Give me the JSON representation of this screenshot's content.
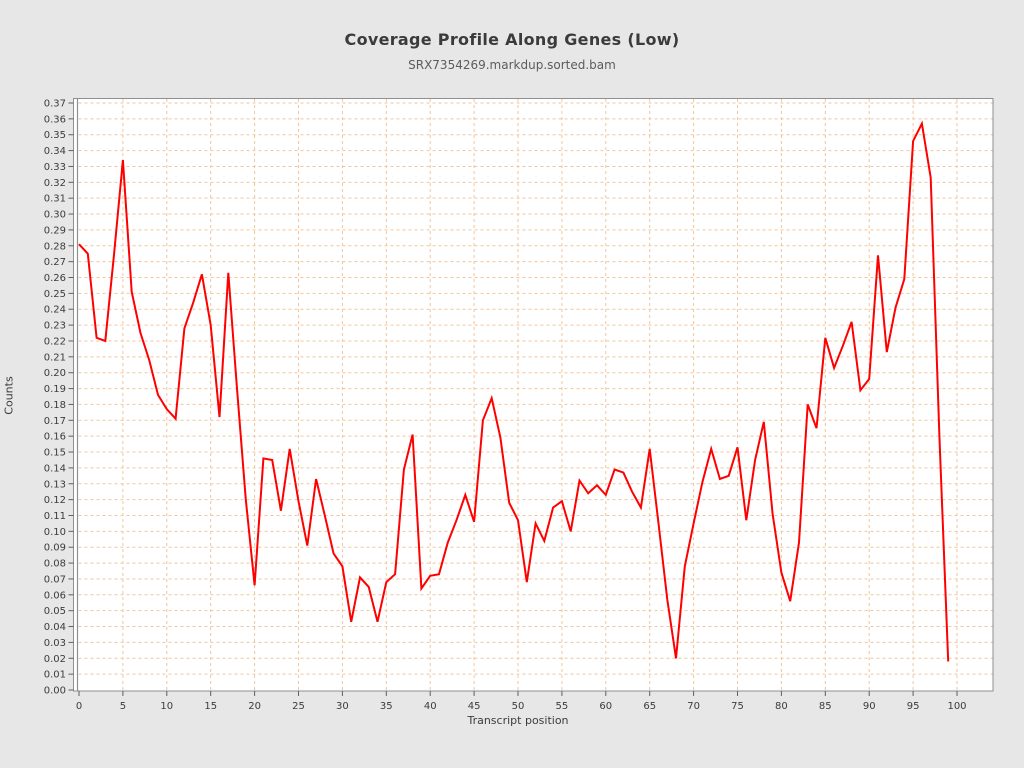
{
  "chart_data": {
    "type": "line",
    "title": "Coverage Profile Along Genes (Low)",
    "subtitle": "SRX7354269.markdup.sorted.bam",
    "xlabel": "Transcript position",
    "ylabel": "Counts",
    "xlim": [
      0,
      100
    ],
    "ylim": [
      0.0,
      0.37
    ],
    "x_ticks": [
      0,
      5,
      10,
      15,
      20,
      25,
      30,
      35,
      40,
      45,
      50,
      55,
      60,
      65,
      70,
      75,
      80,
      85,
      90,
      95,
      100
    ],
    "y_ticks": [
      "0.00",
      "0.01",
      "0.02",
      "0.03",
      "0.04",
      "0.05",
      "0.06",
      "0.07",
      "0.08",
      "0.09",
      "0.10",
      "0.11",
      "0.12",
      "0.13",
      "0.14",
      "0.15",
      "0.16",
      "0.17",
      "0.18",
      "0.19",
      "0.20",
      "0.21",
      "0.22",
      "0.23",
      "0.24",
      "0.25",
      "0.26",
      "0.27",
      "0.28",
      "0.29",
      "0.30",
      "0.31",
      "0.32",
      "0.33",
      "0.34",
      "0.35",
      "0.36",
      "0.37"
    ],
    "grid": {
      "on": true,
      "style": "dashed",
      "color": "#f2c59c"
    },
    "legend": "none",
    "series": [
      {
        "name": "SRX7354269.markdup.sorted.bam",
        "color": "#ff0000",
        "x_start": 0,
        "x_step": 1,
        "values": [
          0.281,
          0.275,
          0.222,
          0.22,
          0.275,
          0.334,
          0.251,
          0.225,
          0.208,
          0.186,
          0.177,
          0.171,
          0.228,
          0.244,
          0.262,
          0.23,
          0.172,
          0.263,
          0.19,
          0.12,
          0.066,
          0.146,
          0.145,
          0.113,
          0.152,
          0.119,
          0.091,
          0.133,
          0.11,
          0.086,
          0.078,
          0.043,
          0.071,
          0.065,
          0.043,
          0.068,
          0.073,
          0.139,
          0.161,
          0.064,
          0.072,
          0.073,
          0.093,
          0.107,
          0.123,
          0.106,
          0.17,
          0.184,
          0.159,
          0.118,
          0.107,
          0.068,
          0.105,
          0.094,
          0.115,
          0.119,
          0.1,
          0.132,
          0.124,
          0.129,
          0.123,
          0.139,
          0.137,
          0.125,
          0.115,
          0.152,
          0.105,
          0.057,
          0.02,
          0.078,
          0.105,
          0.131,
          0.152,
          0.133,
          0.135,
          0.153,
          0.107,
          0.145,
          0.169,
          0.111,
          0.074,
          0.056,
          0.093,
          0.18,
          0.165,
          0.222,
          0.203,
          0.217,
          0.232,
          0.189,
          0.196,
          0.274,
          0.213,
          0.241,
          0.259,
          0.346,
          0.357,
          0.323,
          0.16,
          0.018
        ]
      }
    ],
    "colors": {
      "page_background": "#e7e7e7",
      "plot_background": "#ffffff",
      "frame": "#8f8f8f",
      "tick": "#5f5f5f",
      "tick_label": "#3c3c3c",
      "line": "#ff0000",
      "grid": "#f2c59c"
    }
  }
}
